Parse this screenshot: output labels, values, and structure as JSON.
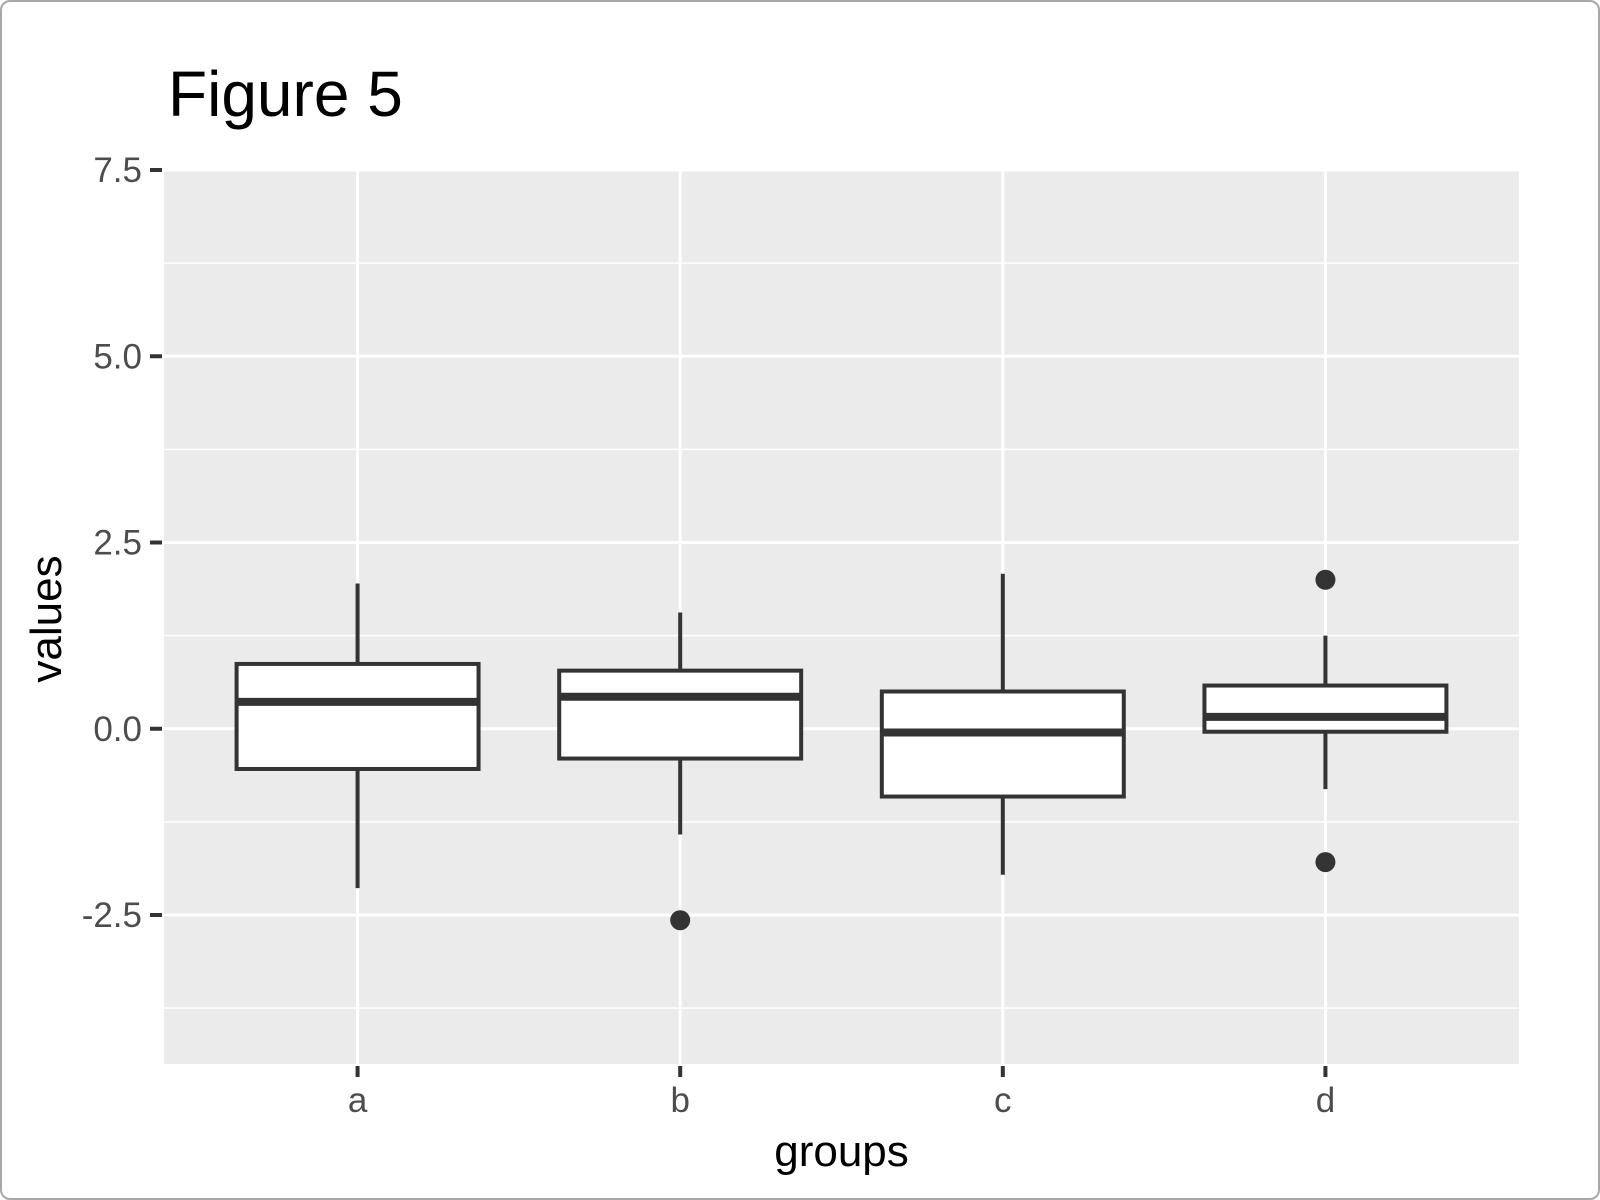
{
  "chart_data": {
    "type": "boxplot",
    "title": "Figure 5",
    "xlabel": "groups",
    "ylabel": "values",
    "categories": [
      "a",
      "b",
      "c",
      "d"
    ],
    "y_ticks": [
      7.5,
      5.0,
      2.5,
      0.0,
      -2.5
    ],
    "y_tick_labels": [
      "7.5",
      "5.0",
      "2.5",
      "0.0",
      "-2.5"
    ],
    "y_minor_gridlines": [
      6.25,
      3.75,
      1.25,
      -1.25,
      -3.75
    ],
    "ylim": [
      -4.5,
      7.5
    ],
    "grid": true,
    "legend": "none",
    "series": [
      {
        "category": "a",
        "whisker_low": -2.14,
        "q1": -0.54,
        "median": 0.36,
        "q3": 0.87,
        "whisker_high": 1.95,
        "outliers": []
      },
      {
        "category": "b",
        "whisker_low": -1.42,
        "q1": -0.4,
        "median": 0.43,
        "q3": 0.78,
        "whisker_high": 1.56,
        "outliers": [
          -2.57
        ]
      },
      {
        "category": "c",
        "whisker_low": -1.96,
        "q1": -0.91,
        "median": -0.05,
        "q3": 0.5,
        "whisker_high": 2.08,
        "outliers": []
      },
      {
        "category": "d",
        "whisker_low": -0.81,
        "q1": -0.04,
        "median": 0.16,
        "q3": 0.58,
        "whisker_high": 1.25,
        "outliers": [
          2.0,
          -1.79
        ]
      }
    ],
    "colors": {
      "panel_background": "#EBEBEB",
      "gridline": "#FFFFFF",
      "box_stroke": "#333333",
      "box_fill": "#FFFFFF",
      "outlier": "#333333",
      "tick_mark": "#333333",
      "tick_label": "#4D4D4D",
      "title": "#000000"
    }
  }
}
